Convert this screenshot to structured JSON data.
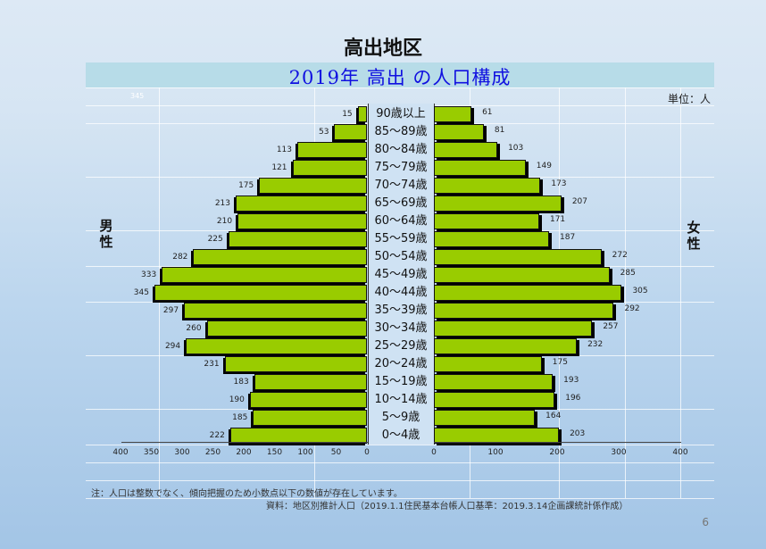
{
  "page": {
    "region_title": "高出地区",
    "page_number": "6",
    "unit_label": "単位：人",
    "ghost_max_label": "345"
  },
  "chart_data": {
    "type": "bar",
    "subtype": "population-pyramid",
    "title": "2019年 高出 の人口構成",
    "categories": [
      "90歳以上",
      "85～89歳",
      "80～84歳",
      "75～79歳",
      "70～74歳",
      "65～69歳",
      "60～64歳",
      "55～59歳",
      "50～54歳",
      "45～49歳",
      "40～44歳",
      "35～39歳",
      "30～34歳",
      "25～29歳",
      "20～24歳",
      "15～19歳",
      "10～14歳",
      "5～9歳",
      "0～4歳"
    ],
    "series": [
      {
        "name": "男性",
        "side": "left",
        "color": "#99cc00",
        "values": [
          15,
          53,
          113,
          121,
          175,
          213,
          210,
          225,
          282,
          333,
          345,
          297,
          260,
          294,
          231,
          183,
          190,
          185,
          222
        ]
      },
      {
        "name": "女性",
        "side": "right",
        "color": "#99cc00",
        "values": [
          61,
          81,
          103,
          149,
          173,
          207,
          171,
          187,
          272,
          285,
          305,
          292,
          257,
          232,
          175,
          193,
          196,
          164,
          203
        ]
      }
    ],
    "xlabel": "",
    "ylabel": "",
    "left_axis": {
      "ticks": [
        "400",
        "350",
        "300",
        "250",
        "200",
        "150",
        "100",
        "50",
        "0"
      ],
      "range": [
        400,
        0
      ]
    },
    "right_axis": {
      "ticks": [
        "0",
        "100",
        "200",
        "300",
        "400"
      ],
      "range": [
        0,
        400
      ]
    },
    "legend": {
      "left": "男性",
      "right": "女性"
    },
    "unit": "人",
    "grid": true
  },
  "labels": {
    "male": "男性",
    "female": "女性",
    "male_chars": [
      "男",
      "性"
    ],
    "female_chars": [
      "女",
      "性"
    ]
  },
  "notes": {
    "note": "注：人口は整数でなく、傾向把握のため小数点以下の数値が存在しています。",
    "source": "資料：地区別推計人口（2019.1.1住民基本台帳人口基準：2019.3.14企画課統計係作成）"
  }
}
